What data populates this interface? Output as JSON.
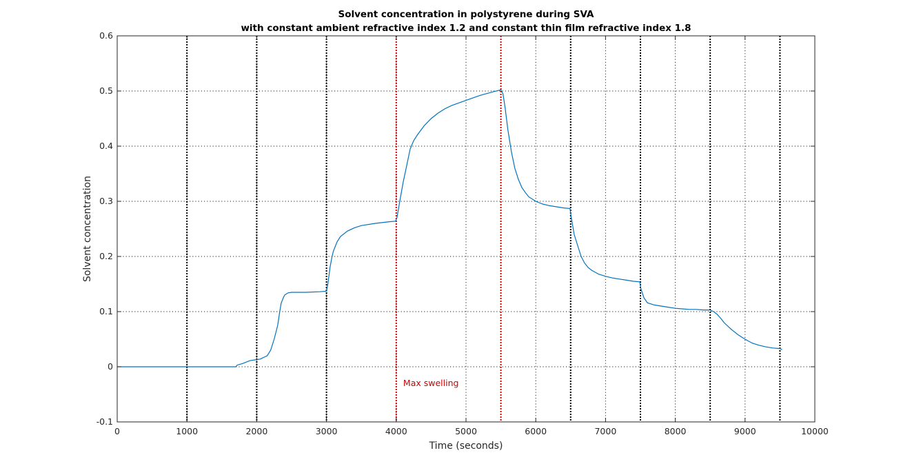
{
  "chart_data": {
    "type": "line",
    "title": "Solvent concentration in polystyrene during SVA",
    "subtitle": "with constant ambient refractive index 1.2 and constant thin film refractive index 1.8",
    "xlabel": "Time (seconds)",
    "ylabel": "Solvent concentration",
    "xlim": [
      0,
      10000
    ],
    "ylim": [
      -0.1,
      0.6
    ],
    "xticks": [
      0,
      1000,
      2000,
      3000,
      4000,
      5000,
      6000,
      7000,
      8000,
      9000,
      10000
    ],
    "yticks": [
      -0.1,
      0,
      0.1,
      0.2,
      0.3,
      0.4,
      0.5,
      0.6
    ],
    "ytick_labels": [
      "-0.1",
      "0",
      "0.1",
      "0.2",
      "0.3",
      "0.4",
      "0.5",
      "0.6"
    ],
    "grid": true,
    "series": [
      {
        "color": "#0072BD",
        "x": [
          0,
          500,
          1000,
          1500,
          1700,
          1720,
          1800,
          1900,
          2000,
          2050,
          2150,
          2200,
          2250,
          2300,
          2330,
          2350,
          2380,
          2400,
          2450,
          2500,
          2700,
          2900,
          3000,
          3020,
          3050,
          3080,
          3100,
          3150,
          3200,
          3300,
          3400,
          3500,
          3700,
          3900,
          3990,
          4010,
          4050,
          4100,
          4150,
          4200,
          4250,
          4300,
          4400,
          4500,
          4600,
          4700,
          4800,
          5000,
          5200,
          5400,
          5500,
          5530,
          5560,
          5600,
          5650,
          5700,
          5750,
          5800,
          5850,
          5900,
          6000,
          6100,
          6200,
          6300,
          6400,
          6490,
          6510,
          6550,
          6600,
          6650,
          6700,
          6750,
          6800,
          6900,
          7000,
          7100,
          7200,
          7300,
          7400,
          7490,
          7510,
          7550,
          7600,
          7700,
          7800,
          7900,
          8000,
          8100,
          8200,
          8300,
          8400,
          8490,
          8550,
          8600,
          8650,
          8700,
          8800,
          8900,
          9000,
          9100,
          9200,
          9300,
          9400,
          9500,
          9530
        ],
        "y": [
          0,
          0,
          0,
          0,
          0,
          0.003,
          0.006,
          0.011,
          0.013,
          0.014,
          0.02,
          0.03,
          0.05,
          0.075,
          0.1,
          0.115,
          0.125,
          0.13,
          0.134,
          0.135,
          0.135,
          0.136,
          0.137,
          0.15,
          0.18,
          0.2,
          0.21,
          0.226,
          0.236,
          0.246,
          0.252,
          0.256,
          0.26,
          0.263,
          0.264,
          0.27,
          0.3,
          0.335,
          0.365,
          0.395,
          0.41,
          0.42,
          0.437,
          0.45,
          0.46,
          0.468,
          0.474,
          0.483,
          0.492,
          0.499,
          0.502,
          0.495,
          0.47,
          0.43,
          0.39,
          0.36,
          0.34,
          0.325,
          0.316,
          0.308,
          0.3,
          0.295,
          0.292,
          0.29,
          0.288,
          0.287,
          0.27,
          0.24,
          0.22,
          0.2,
          0.188,
          0.18,
          0.175,
          0.168,
          0.164,
          0.161,
          0.159,
          0.157,
          0.155,
          0.154,
          0.14,
          0.125,
          0.116,
          0.112,
          0.11,
          0.108,
          0.106,
          0.105,
          0.104,
          0.104,
          0.103,
          0.103,
          0.1,
          0.095,
          0.088,
          0.08,
          0.068,
          0.058,
          0.05,
          0.043,
          0.039,
          0.036,
          0.034,
          0.033,
          0.031
        ]
      }
    ],
    "vertical_lines": [
      {
        "x": 1000,
        "color": "#000000"
      },
      {
        "x": 2000,
        "color": "#000000"
      },
      {
        "x": 3000,
        "color": "#000000"
      },
      {
        "x": 4000,
        "color": "#D00000"
      },
      {
        "x": 5500,
        "color": "#D00000"
      },
      {
        "x": 6500,
        "color": "#000000"
      },
      {
        "x": 7500,
        "color": "#000000"
      },
      {
        "x": 8500,
        "color": "#000000"
      },
      {
        "x": 9500,
        "color": "#000000"
      }
    ],
    "annotations": [
      {
        "text": "Max swelling",
        "x": 4100,
        "y": -0.03,
        "color": "#D00000"
      }
    ]
  }
}
